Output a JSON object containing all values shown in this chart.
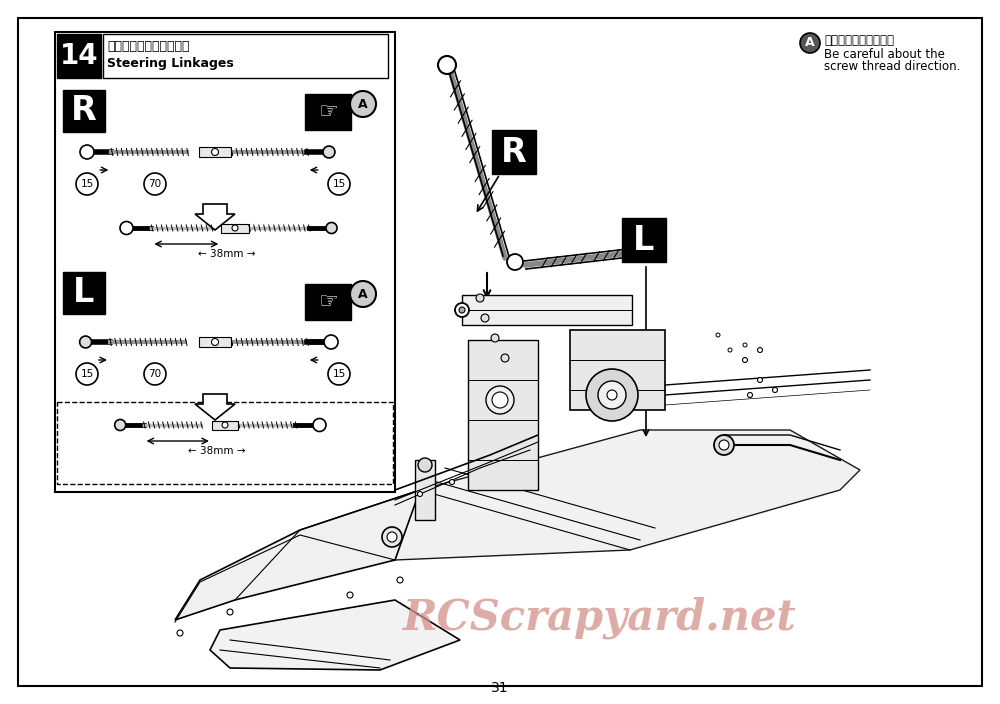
{
  "page_number": "31",
  "bg_color": "#ffffff",
  "step_number": "14",
  "step_title_jp": "ステアリングリンケージ",
  "step_title_en": "Steering Linkages",
  "note_circle_label": "A",
  "note_jp": "ネジ山の向きに注意。",
  "note_en_line1": "Be careful about the",
  "note_en_line2": "screw thread direction.",
  "watermark": "RCScrapyard.net",
  "watermark_color": "#d4908a",
  "label_R": "R",
  "label_L": "L",
  "dim_38mm": "←─ 38mm ─→"
}
